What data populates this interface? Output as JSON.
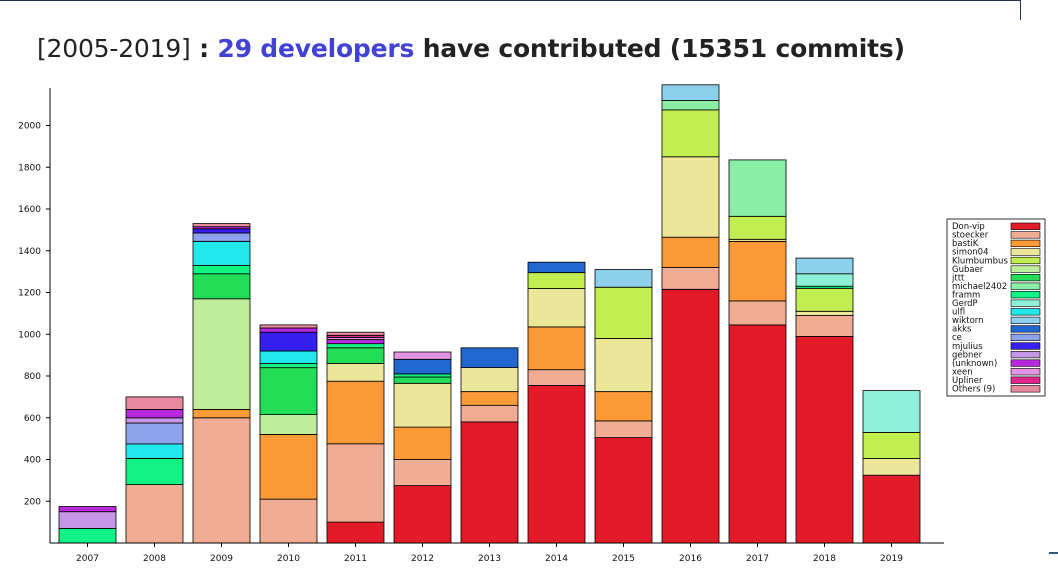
{
  "title": {
    "range": "[2005-2019]",
    "separator": " : ",
    "highlight": "29 developers",
    "middle": " have contributed ",
    "commits": "(15351 commits)"
  },
  "chart_data": {
    "type": "bar",
    "stacked": true,
    "title": "[2005-2019] : 29 developers have contributed (15351 commits)",
    "xlabel": "",
    "ylabel": "",
    "ylim": [
      0,
      2200
    ],
    "y_ticks": [
      200,
      400,
      600,
      800,
      1000,
      1200,
      1400,
      1600,
      1800,
      2000
    ],
    "grid": false,
    "legend_position": "right",
    "categories": [
      "2007",
      "2008",
      "2009",
      "2010",
      "2011",
      "2012",
      "2013",
      "2014",
      "2015",
      "2016",
      "2017",
      "2018",
      "2019"
    ],
    "series": [
      {
        "name": "Don-vip",
        "color": "#e31a28",
        "values": [
          0,
          0,
          0,
          0,
          100,
          275,
          580,
          755,
          505,
          1215,
          1045,
          990,
          325
        ]
      },
      {
        "name": "stoecker",
        "color": "#f0ad94",
        "values": [
          0,
          280,
          600,
          210,
          375,
          125,
          80,
          75,
          80,
          105,
          115,
          100,
          0
        ]
      },
      {
        "name": "bastiK",
        "color": "#fd9a38",
        "values": [
          0,
          0,
          40,
          310,
          300,
          155,
          65,
          205,
          140,
          145,
          285,
          0,
          0
        ]
      },
      {
        "name": "simon04",
        "color": "#ece699",
        "values": [
          0,
          0,
          0,
          0,
          85,
          210,
          115,
          185,
          255,
          385,
          10,
          20,
          80
        ]
      },
      {
        "name": "Klumbumbus",
        "color": "#c1ee50",
        "values": [
          0,
          0,
          0,
          0,
          0,
          0,
          0,
          75,
          245,
          225,
          110,
          110,
          125
        ]
      },
      {
        "name": "Gubaer",
        "color": "#bfee9a",
        "values": [
          0,
          0,
          530,
          95,
          0,
          0,
          0,
          0,
          0,
          0,
          0,
          0,
          0
        ]
      },
      {
        "name": "jttt",
        "color": "#22dd55",
        "values": [
          0,
          0,
          120,
          225,
          75,
          30,
          0,
          0,
          0,
          0,
          0,
          0,
          0
        ]
      },
      {
        "name": "michael2402",
        "color": "#8aeea6",
        "values": [
          0,
          0,
          0,
          0,
          0,
          0,
          0,
          0,
          0,
          45,
          270,
          0,
          0
        ]
      },
      {
        "name": "framm",
        "color": "#11f385",
        "values": [
          70,
          125,
          40,
          20,
          20,
          15,
          0,
          0,
          0,
          0,
          0,
          10,
          0
        ]
      },
      {
        "name": "GerdP",
        "color": "#8ef0d8",
        "values": [
          0,
          0,
          0,
          0,
          0,
          0,
          0,
          0,
          0,
          0,
          0,
          60,
          200
        ]
      },
      {
        "name": "ulfl",
        "color": "#22e8ee",
        "values": [
          0,
          70,
          115,
          60,
          0,
          0,
          0,
          0,
          0,
          0,
          0,
          0,
          0
        ]
      },
      {
        "name": "wiktorn",
        "color": "#8cd0ec",
        "values": [
          0,
          0,
          0,
          0,
          0,
          0,
          0,
          0,
          85,
          75,
          0,
          75,
          0
        ]
      },
      {
        "name": "akks",
        "color": "#2167d0",
        "values": [
          0,
          0,
          0,
          0,
          0,
          70,
          95,
          50,
          0,
          0,
          0,
          0,
          0
        ]
      },
      {
        "name": "ce",
        "color": "#8fa2ee",
        "values": [
          0,
          100,
          40,
          0,
          0,
          0,
          0,
          0,
          0,
          0,
          0,
          0,
          0
        ]
      },
      {
        "name": "mjulius",
        "color": "#3720ee",
        "values": [
          0,
          0,
          20,
          90,
          0,
          0,
          0,
          0,
          0,
          0,
          0,
          0,
          0
        ]
      },
      {
        "name": "gebner",
        "color": "#c596e6",
        "values": [
          80,
          25,
          0,
          0,
          0,
          0,
          0,
          0,
          0,
          0,
          0,
          0,
          0
        ]
      },
      {
        "name": "(unknown)",
        "color": "#b828dd",
        "values": [
          25,
          40,
          10,
          20,
          20,
          0,
          0,
          0,
          0,
          0,
          0,
          0,
          0
        ]
      },
      {
        "name": "xeen",
        "color": "#e494e4",
        "values": [
          0,
          0,
          0,
          0,
          10,
          35,
          0,
          0,
          0,
          0,
          0,
          0,
          0
        ]
      },
      {
        "name": "Upliner",
        "color": "#e2258e",
        "values": [
          0,
          0,
          0,
          0,
          10,
          0,
          0,
          0,
          0,
          0,
          0,
          0,
          0
        ]
      },
      {
        "name": "Others (9)",
        "color": "#ea8a9e",
        "values": [
          0,
          60,
          15,
          15,
          15,
          0,
          0,
          0,
          0,
          0,
          0,
          0,
          0
        ]
      }
    ]
  }
}
